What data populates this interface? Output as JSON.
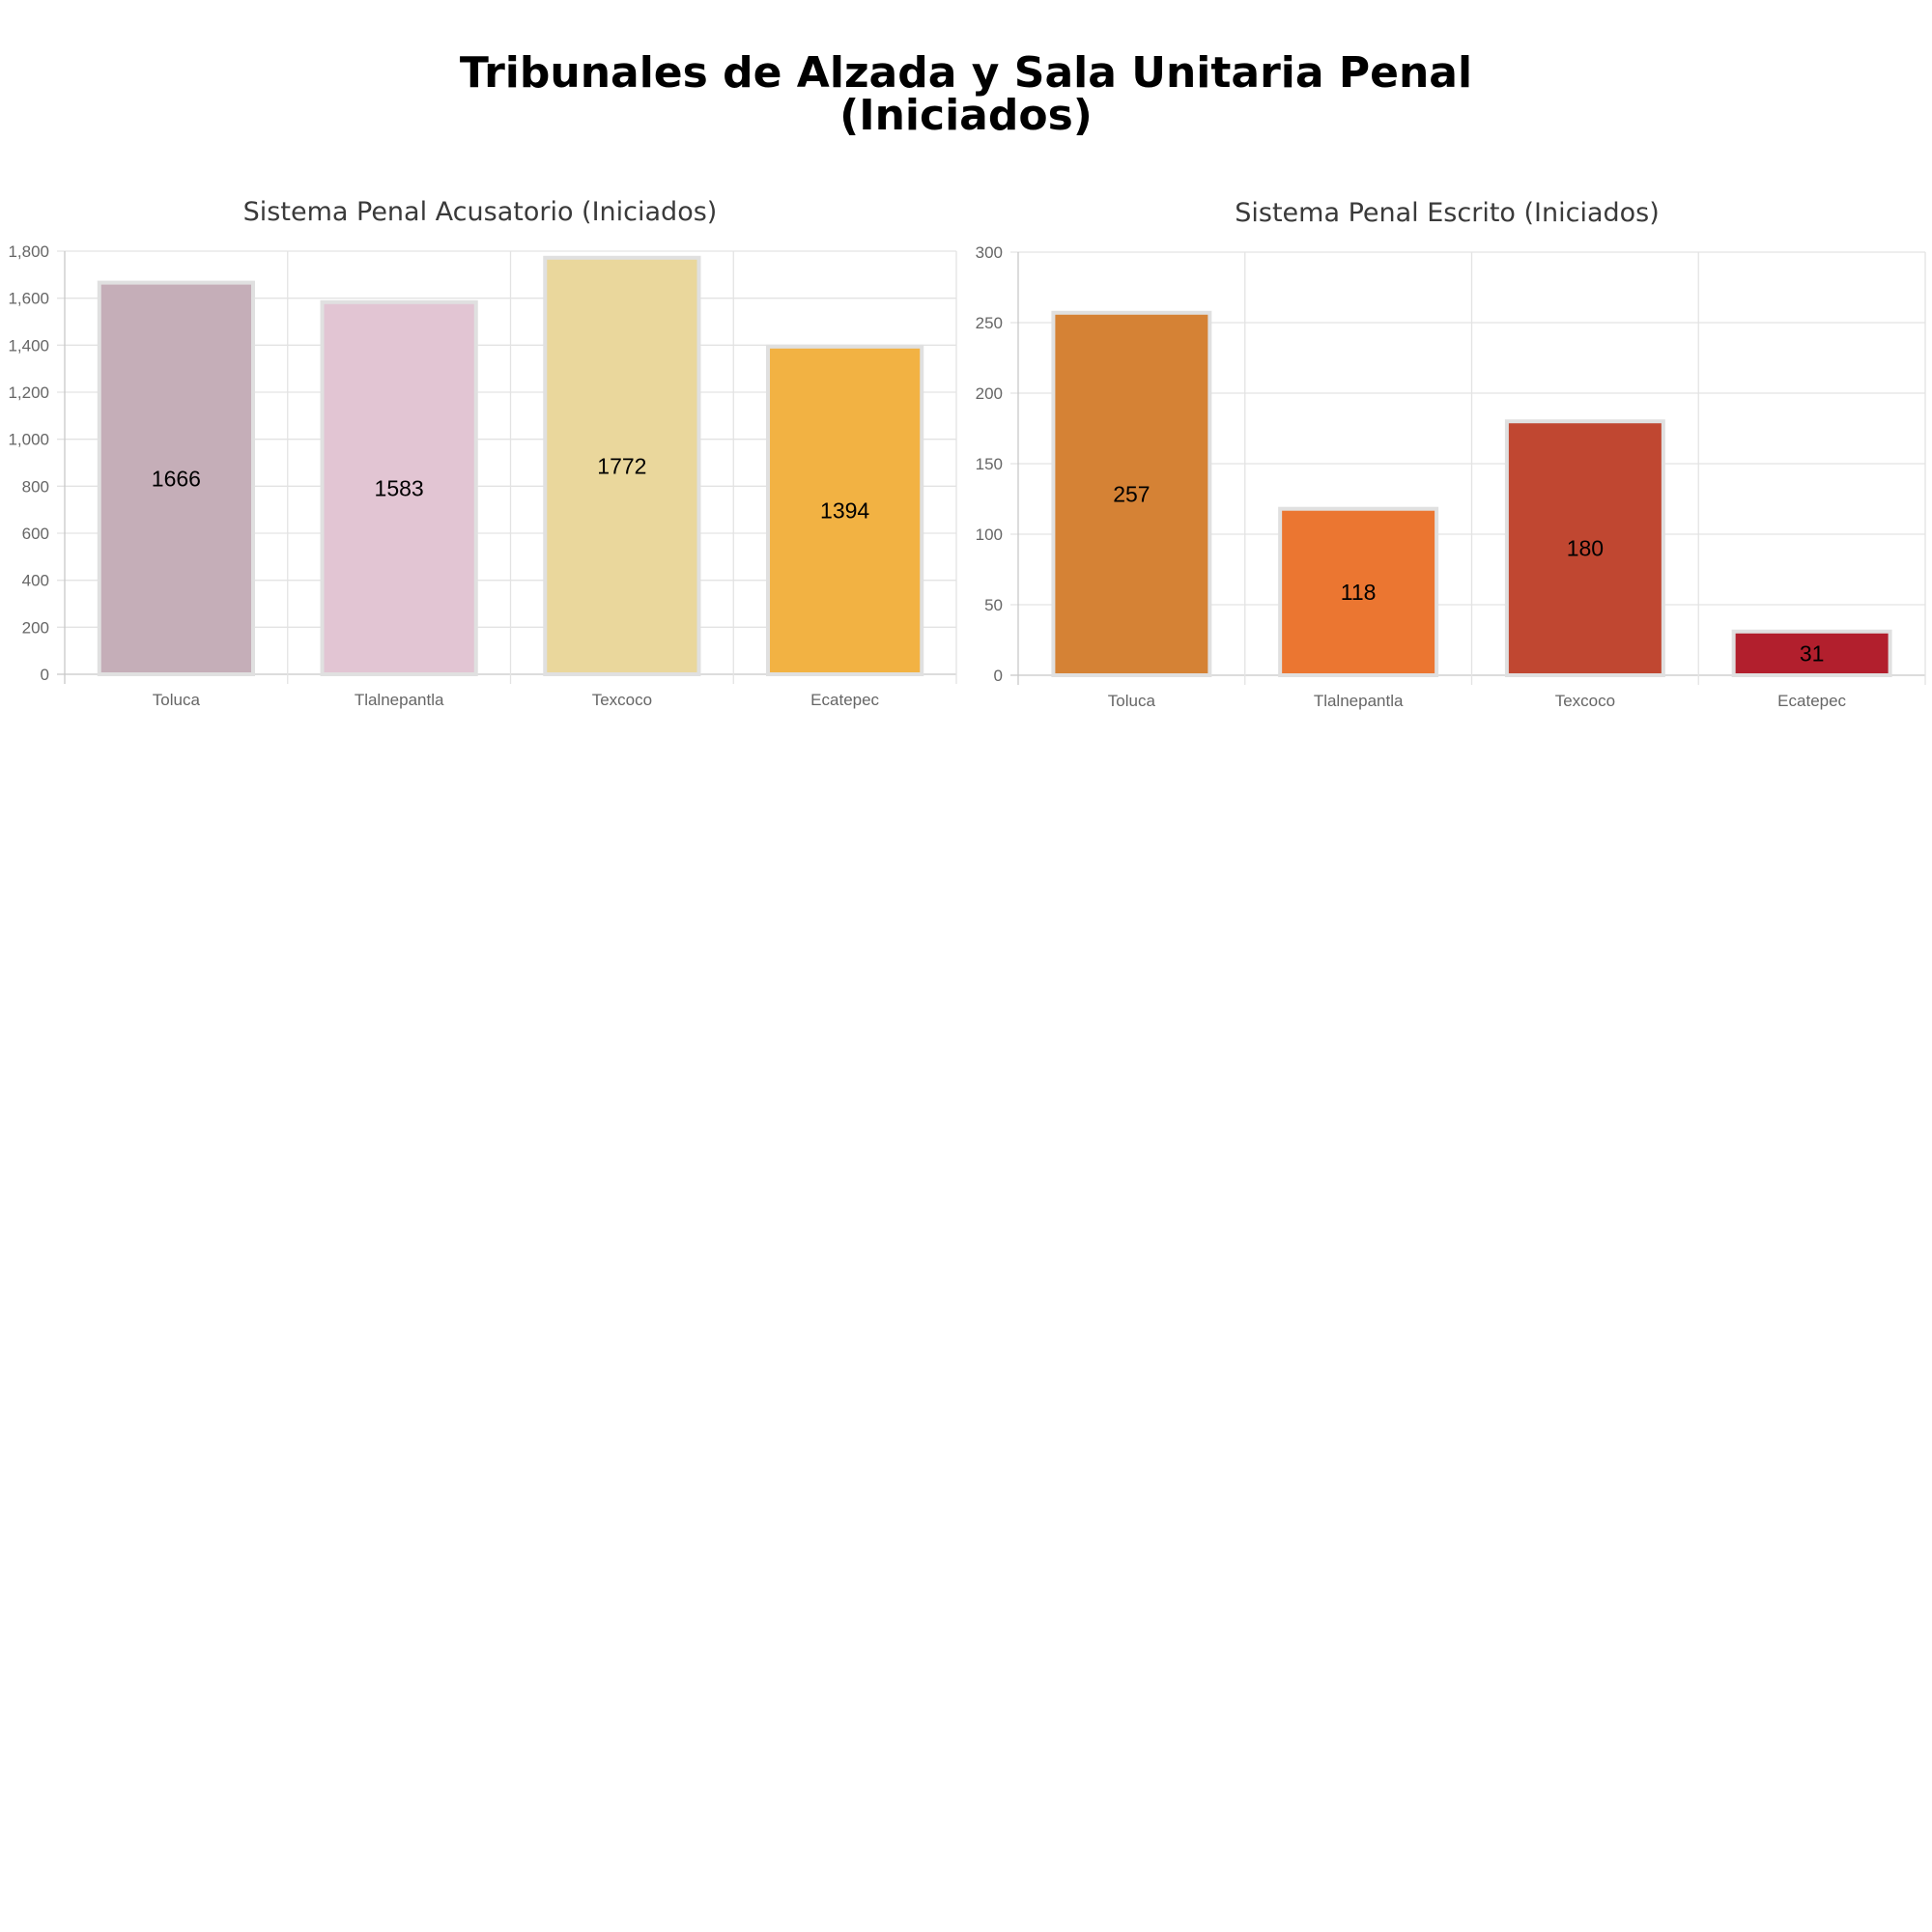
{
  "page": {
    "title_line1": "Tribunales de Alzada y Sala Unitaria Penal",
    "title_line2": "(Iniciados)"
  },
  "chart_data": [
    {
      "type": "bar",
      "title": "Sistema Penal Acusatorio (Iniciados)",
      "categories": [
        "Toluca",
        "Tlalnepantla",
        "Texcoco",
        "Ecatepec"
      ],
      "values": [
        1666,
        1583,
        1772,
        1394
      ],
      "value_labels": [
        "1666",
        "1583",
        "1772",
        "1394"
      ],
      "colors": [
        "#c5aeb8",
        "#e2c5d3",
        "#ead79c",
        "#f2b243"
      ],
      "ylim": [
        0,
        1800
      ],
      "yticks": [
        0,
        200,
        400,
        600,
        800,
        1000,
        1200,
        1400,
        1600,
        1800
      ],
      "ytick_labels": [
        "0",
        "200",
        "400",
        "600",
        "800",
        "1,000",
        "1,200",
        "1,400",
        "1,600",
        "1,800"
      ],
      "xlabel": "",
      "ylabel": "",
      "grid": true,
      "legend": false
    },
    {
      "type": "bar",
      "title": "Sistema Penal Escrito (Iniciados)",
      "categories": [
        "Toluca",
        "Tlalnepantla",
        "Texcoco",
        "Ecatepec"
      ],
      "values": [
        257,
        118,
        180,
        31
      ],
      "value_labels": [
        "257",
        "118",
        "180",
        "31"
      ],
      "colors": [
        "#d58235",
        "#eb7631",
        "#c04731",
        "#b21f2d"
      ],
      "ylim": [
        0,
        300
      ],
      "yticks": [
        0,
        50,
        100,
        150,
        200,
        250,
        300
      ],
      "ytick_labels": [
        "0",
        "50",
        "100",
        "150",
        "200",
        "250",
        "300"
      ],
      "xlabel": "",
      "ylabel": "",
      "grid": true,
      "legend": false
    }
  ]
}
